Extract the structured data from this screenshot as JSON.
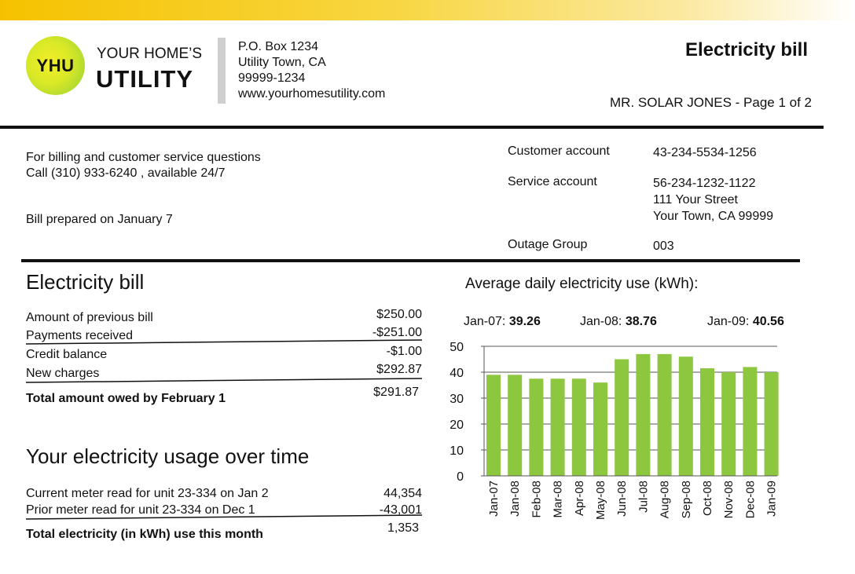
{
  "header": {
    "logo_text": "YHU",
    "brand_line1": "YOUR HOME’S",
    "brand_line2": "UTILITY",
    "address": [
      "P.O. Box 1234",
      "Utility Town, CA",
      "99999-1234",
      "www.yourhomesutility.com"
    ],
    "title": "Electricity bill",
    "page_info": "MR. SOLAR JONES - Page 1 of 2"
  },
  "contact": {
    "line1": "For billing and customer service questions",
    "line2": "Call (310) 933-6240  , available 24/7",
    "prepared": "Bill prepared on January 7"
  },
  "accounts": {
    "customer_label": "Customer account",
    "customer_value": "43-234-5534-1256",
    "service_label": "Service account",
    "service_value": "56-234-1232-1122",
    "service_addr1": "111 Your Street",
    "service_addr2": "Your Town, CA 99999",
    "outage_label": "Outage Group",
    "outage_value": "003"
  },
  "bill": {
    "heading": "Electricity bill",
    "rows": [
      {
        "label": "Amount of previous bill",
        "value": "$250.00"
      },
      {
        "label": "Payments received",
        "value": "-$251.00"
      },
      {
        "label": "Credit balance",
        "value": "-$1.00"
      },
      {
        "label": "New charges",
        "value": "$292.87"
      }
    ],
    "total_label": "Total amount owed by February 1",
    "total_value": "$291.87"
  },
  "usage": {
    "heading": "Your electricity usage over time",
    "rows": [
      {
        "label": "Current meter read for unit 23-334 on Jan 2",
        "value": "44,354"
      },
      {
        "label": "Prior meter read for unit 23-334 on Dec 1",
        "value": "-43,001"
      }
    ],
    "total_label": "Total electricity (in kWh) use this month",
    "total_value": "1,353"
  },
  "chart_section": {
    "title": "Average daily electricity use (kWh):",
    "avg": [
      {
        "label": "Jan-07: ",
        "value": "39.26"
      },
      {
        "label": "Jan-08: ",
        "value": "38.76"
      },
      {
        "label": "Jan-09: ",
        "value": "40.56"
      }
    ]
  },
  "colors": {
    "bar": "#8dc63f",
    "accent": "#f6c200"
  },
  "chart_data": {
    "type": "bar",
    "categories": [
      "Jan-07",
      "Jan-08",
      "Feb-08",
      "Mar-08",
      "Apr-08",
      "May-08",
      "Jun-08",
      "Jul-08",
      "Aug-08",
      "Sep-08",
      "Oct-08",
      "Nov-08",
      "Dec-08",
      "Jan-09"
    ],
    "values": [
      39,
      39,
      37.5,
      37.5,
      37.5,
      36,
      45,
      47,
      47,
      46,
      41.5,
      40,
      42,
      40
    ],
    "yticks": [
      0,
      10,
      20,
      30,
      40,
      50
    ],
    "ylim": [
      0,
      50
    ],
    "grid": true,
    "title": "",
    "xlabel": "",
    "ylabel": ""
  }
}
